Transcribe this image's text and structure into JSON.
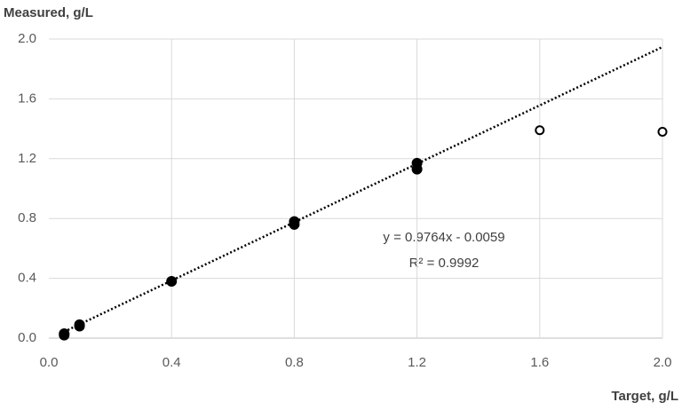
{
  "chart_data": {
    "type": "scatter",
    "y_label": "Measured, g/L",
    "x_label": "Target, g/L",
    "annotations": [
      "y = 0.9764x - 0.0059",
      "R² = 0.9992"
    ],
    "xlim": [
      0,
      2
    ],
    "ylim": [
      0,
      2
    ],
    "xticks": [
      {
        "value": 0,
        "label": "0.0"
      },
      0.4,
      0.8,
      1.2,
      1.6,
      {
        "value": 2,
        "label": "2.0"
      }
    ],
    "yticks": [
      {
        "value": 0,
        "label": "0.0"
      },
      0.4,
      0.8,
      1.2,
      1.6,
      {
        "value": 2,
        "label": "2.0"
      }
    ],
    "grid": true,
    "series": [
      {
        "color": "#000000",
        "marker": "filled",
        "x": [
          0.05,
          0.05,
          0.1,
          0.1,
          0.4,
          0.8,
          0.8,
          1.2,
          1.2
        ],
        "values": [
          0.03,
          0.02,
          0.09,
          0.08,
          0.38,
          0.78,
          0.76,
          1.17,
          1.13
        ]
      },
      {
        "color": "#000000",
        "marker": "open",
        "x": [
          1.6,
          2.0
        ],
        "values": [
          1.39,
          1.38
        ]
      }
    ],
    "trendline": {
      "color": "#000000",
      "x": [
        0.05,
        2.0
      ],
      "values": [
        0.043,
        1.947
      ]
    }
  }
}
